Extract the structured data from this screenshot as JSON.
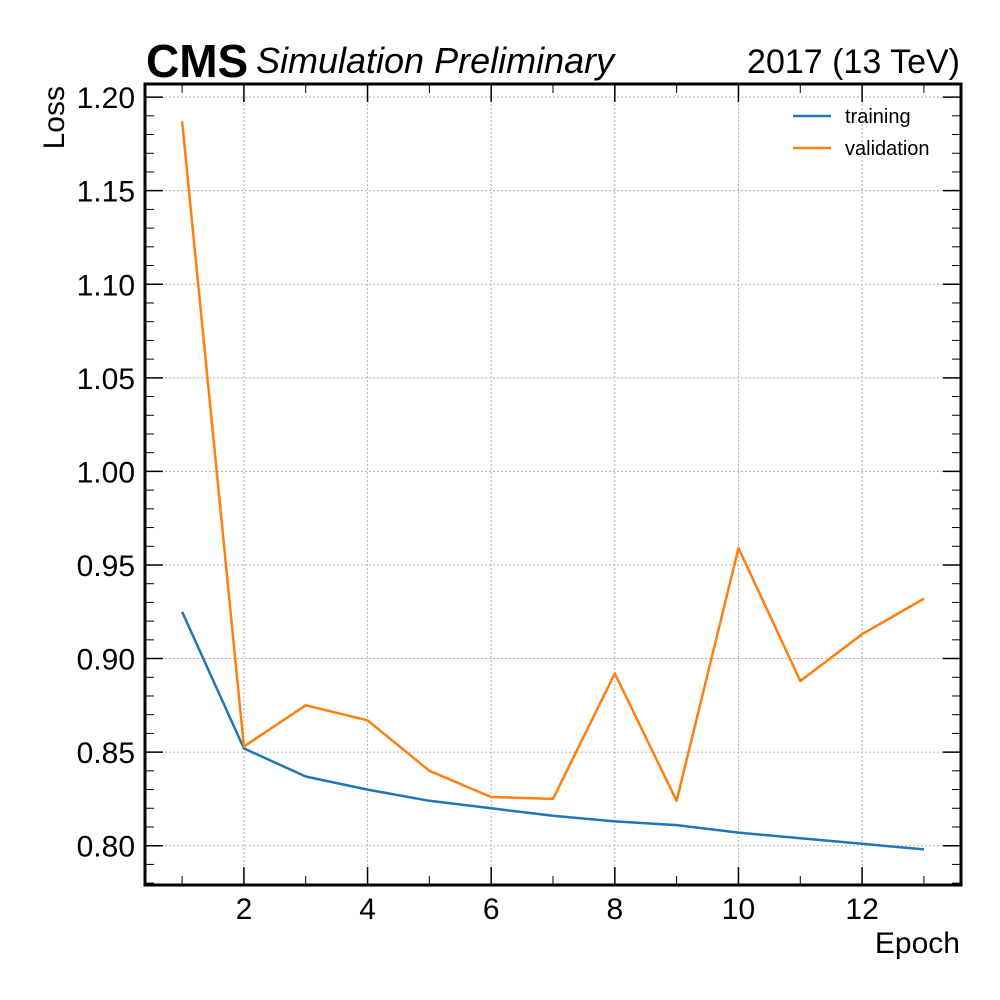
{
  "header": {
    "experiment": "CMS",
    "label": "Simulation Preliminary",
    "lumi": "2017 (13 TeV)"
  },
  "chart_data": {
    "type": "line",
    "xlabel": "Epoch",
    "ylabel": "Loss",
    "xlim": [
      0.4,
      13.6
    ],
    "ylim": [
      0.779,
      1.207
    ],
    "x_ticks": [
      2,
      4,
      6,
      8,
      10,
      12
    ],
    "x_tick_labels": [
      "2",
      "4",
      "6",
      "8",
      "10",
      "12"
    ],
    "y_ticks": [
      0.8,
      0.85,
      0.9,
      0.95,
      1.0,
      1.05,
      1.1,
      1.15,
      1.2
    ],
    "y_tick_labels": [
      "0.80",
      "0.85",
      "0.90",
      "0.95",
      "1.00",
      "1.05",
      "1.10",
      "1.15",
      "1.20"
    ],
    "grid": true,
    "legend_position": "top-right",
    "x": [
      1,
      2,
      3,
      4,
      5,
      6,
      7,
      8,
      9,
      10,
      11,
      12,
      13
    ],
    "series": [
      {
        "name": "training",
        "color": "#1f77b4",
        "values": [
          0.925,
          0.852,
          0.837,
          0.83,
          0.824,
          0.82,
          0.816,
          0.813,
          0.811,
          0.807,
          0.804,
          0.801,
          0.798
        ]
      },
      {
        "name": "validation",
        "color": "#ff7f0e",
        "values": [
          1.187,
          0.853,
          0.875,
          0.867,
          0.84,
          0.826,
          0.825,
          0.892,
          0.824,
          0.959,
          0.888,
          0.913,
          0.932
        ]
      }
    ]
  }
}
